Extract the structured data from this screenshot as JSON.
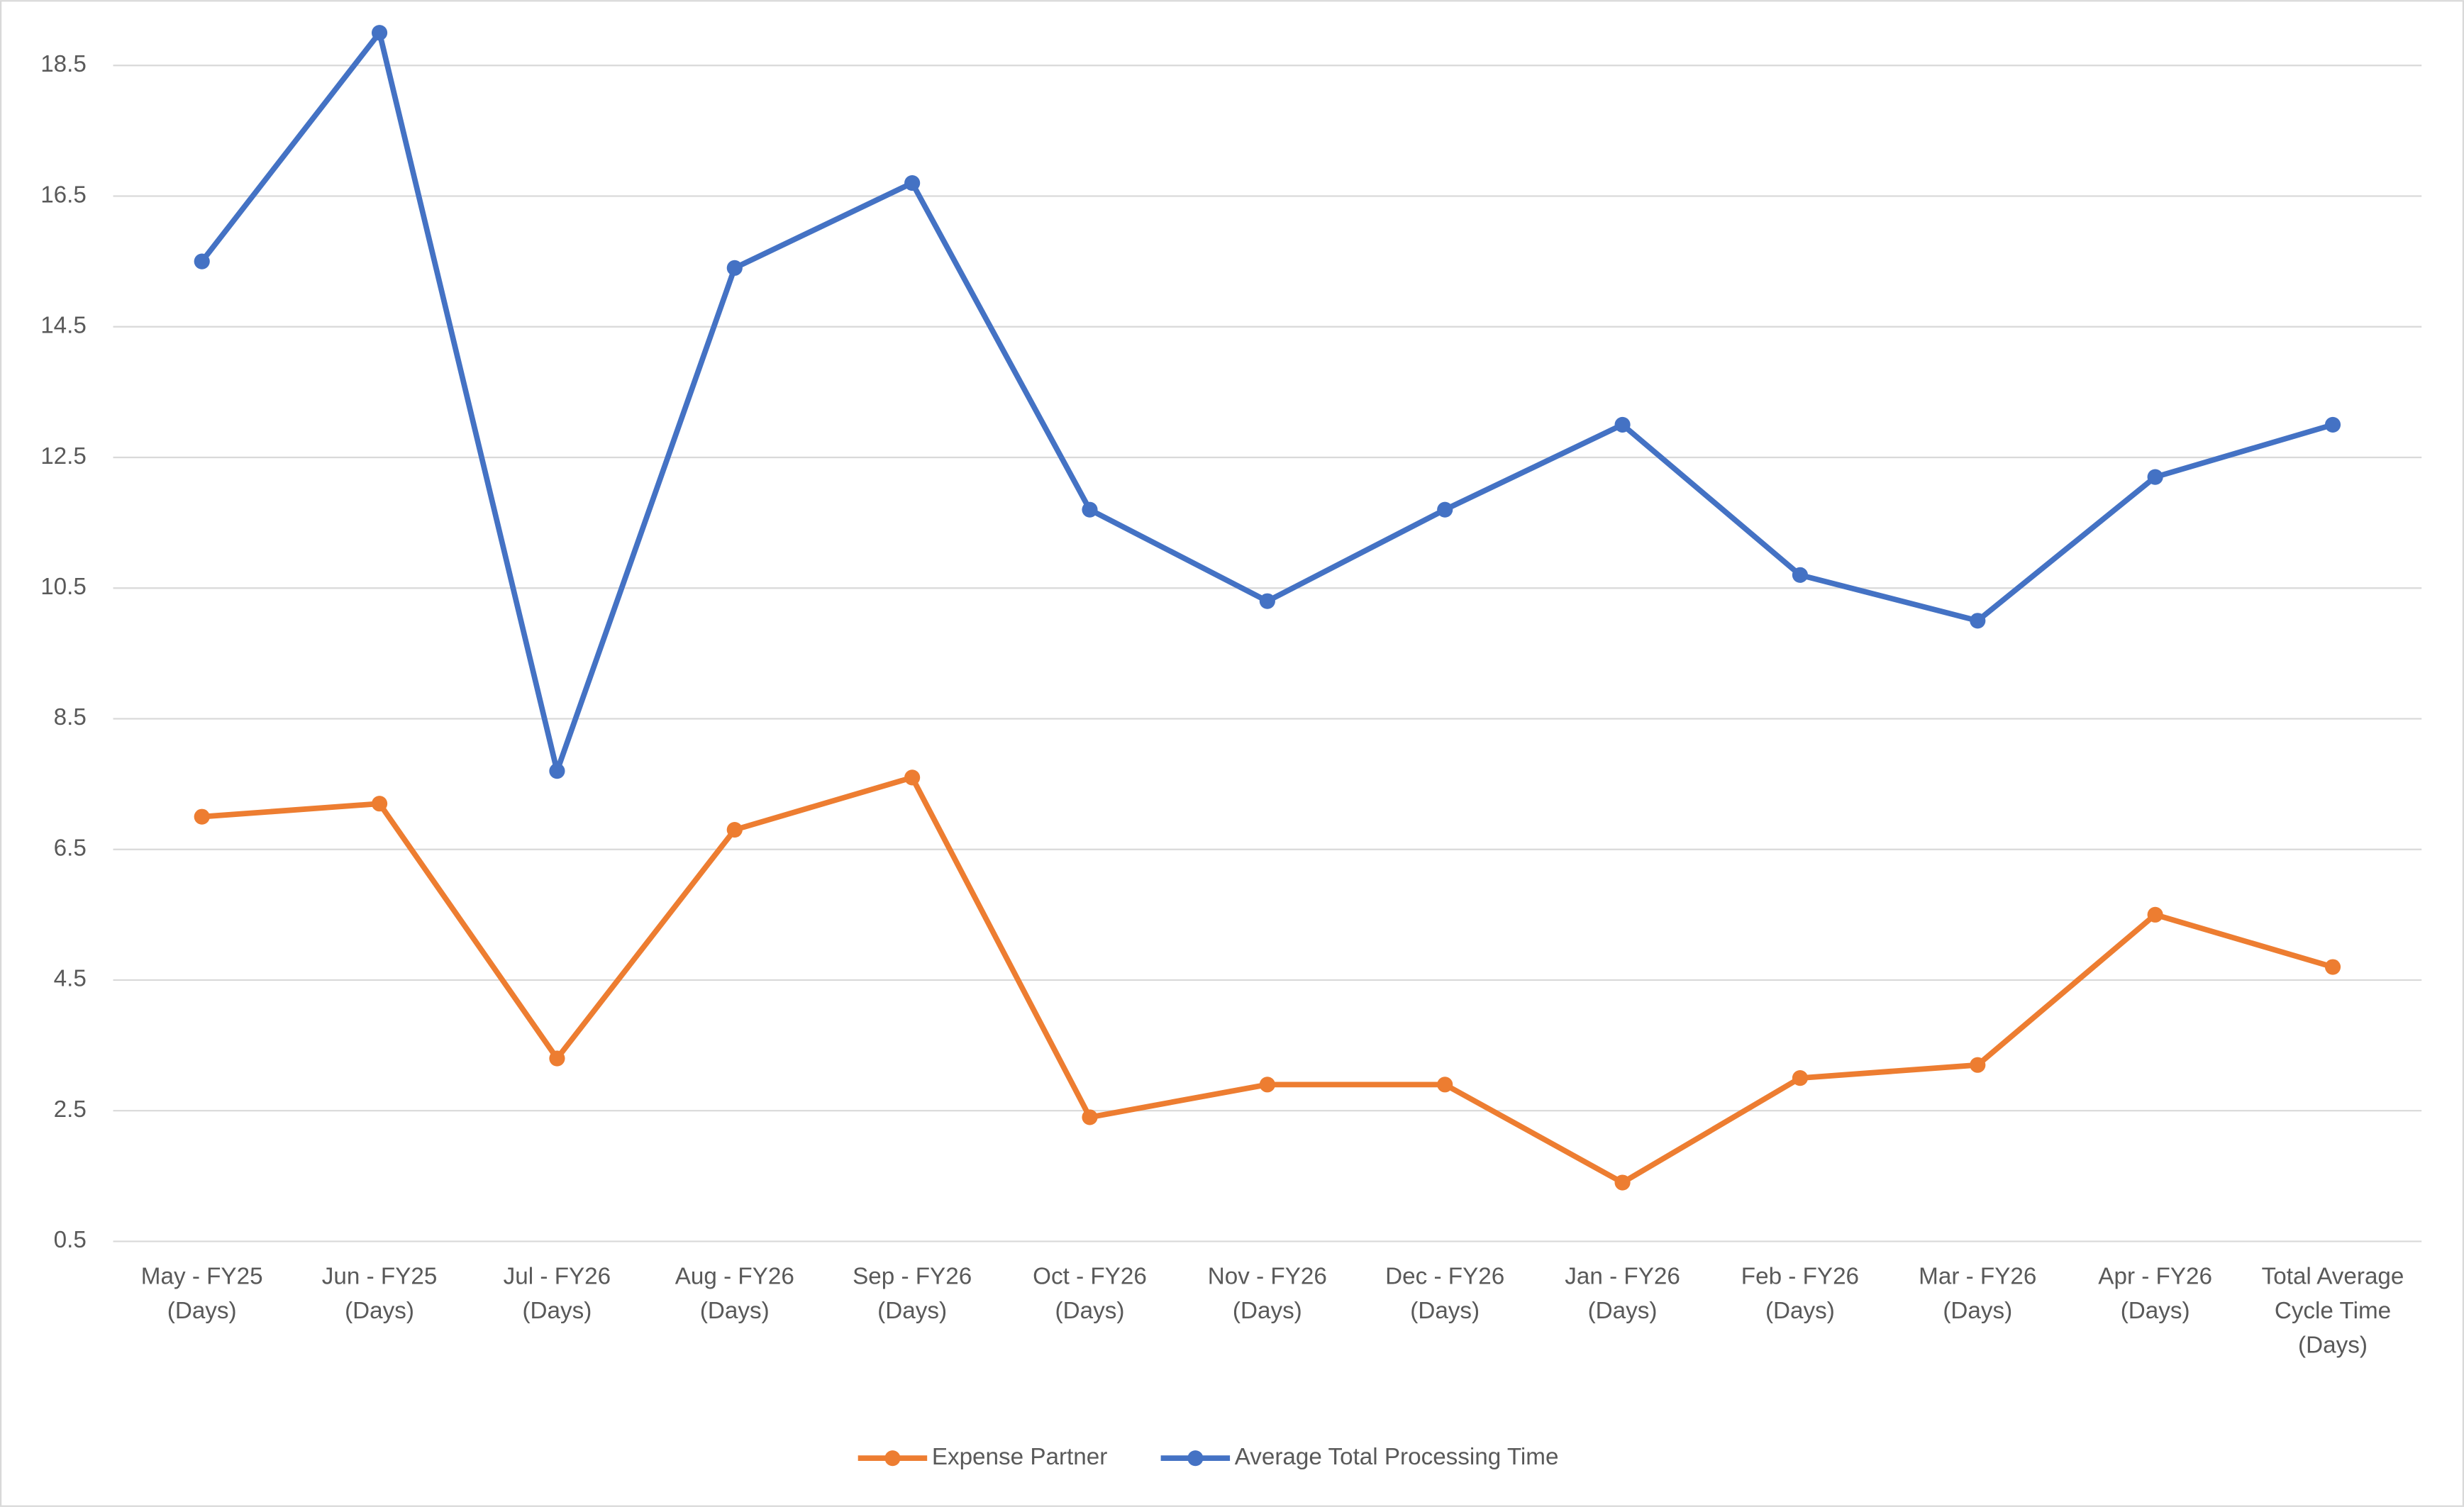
{
  "chart_data": {
    "type": "line",
    "categories": [
      "May - FY25 (Days)",
      "Jun - FY25 (Days)",
      "Jul - FY26 (Days)",
      "Aug - FY26 (Days)",
      "Sep - FY26 (Days)",
      "Oct - FY26 (Days)",
      "Nov - FY26 (Days)",
      "Dec - FY26 (Days)",
      "Jan - FY26 (Days)",
      "Feb - FY26 (Days)",
      "Mar - FY26 (Days)",
      "Apr - FY26 (Days)",
      "Total Average Cycle Time (Days)"
    ],
    "series": [
      {
        "name": "Expense Partner",
        "color": "#ed7d31",
        "values": [
          7.0,
          7.2,
          3.3,
          6.8,
          7.6,
          2.4,
          2.9,
          2.9,
          1.4,
          3.0,
          3.2,
          5.5,
          4.7
        ]
      },
      {
        "name": "Average Total Processing Time",
        "color": "#4472c4",
        "values": [
          15.5,
          19.0,
          7.7,
          15.4,
          16.7,
          11.7,
          10.3,
          11.7,
          13.0,
          10.7,
          10.0,
          12.2,
          13.0
        ]
      }
    ],
    "ylim": [
      0.5,
      19.5
    ],
    "yticks": [
      0.5,
      2.5,
      4.5,
      6.5,
      8.5,
      10.5,
      12.5,
      14.5,
      16.5,
      18.5
    ],
    "grid": true,
    "legend": "bottom"
  }
}
